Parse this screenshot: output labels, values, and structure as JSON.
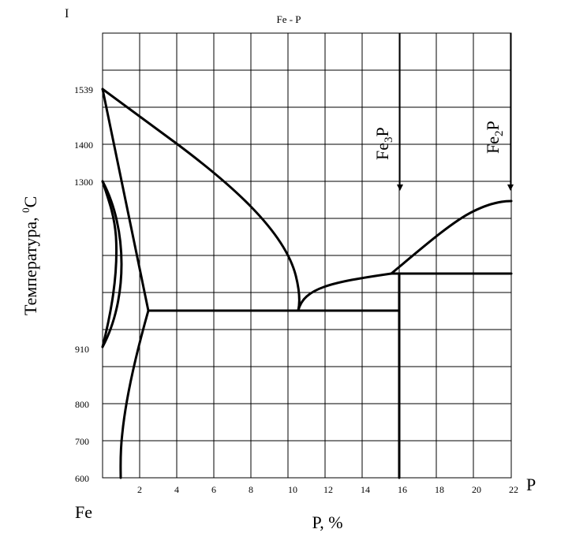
{
  "diagram": {
    "title": "Fe - P",
    "corner_mark": "I",
    "ylabel": "Температура, ",
    "ylabel_sup": "0",
    "ylabel_unit": "C",
    "xlabel": "P, %",
    "left_component": "Fe",
    "right_component": "P",
    "x_ticks": [
      "2",
      "4",
      "6",
      "8",
      "10",
      "12",
      "14",
      "16",
      "18",
      "20",
      "22"
    ],
    "y_ticks": [
      "1539",
      "1400",
      "1300",
      "910",
      "800",
      "700",
      "600"
    ],
    "compounds": [
      {
        "base": "Fe",
        "sub": "3",
        "tail": "P"
      },
      {
        "base": "Fe",
        "sub": "2",
        "tail": "P"
      }
    ]
  }
}
